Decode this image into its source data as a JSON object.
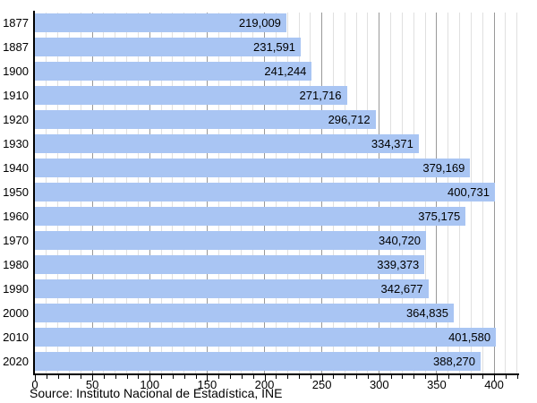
{
  "chart_data": {
    "type": "bar",
    "orientation": "horizontal",
    "title": "",
    "xlabel": "",
    "ylabel": "",
    "categories": [
      "1877",
      "1887",
      "1900",
      "1910",
      "1920",
      "1930",
      "1940",
      "1950",
      "1960",
      "1970",
      "1980",
      "1990",
      "2000",
      "2010",
      "2020"
    ],
    "values": [
      219009,
      231591,
      241244,
      271716,
      296712,
      334371,
      379169,
      400731,
      375175,
      340720,
      339373,
      342677,
      364835,
      401580,
      388270
    ],
    "value_labels": [
      "219,009",
      "231,591",
      "241,244",
      "271,716",
      "296,712",
      "334,371",
      "379,169",
      "400,731",
      "375,175",
      "340,720",
      "339,373",
      "342,677",
      "364,835",
      "401,580",
      "388,270"
    ],
    "axis_unit_divisor": 1000,
    "xlim": [
      0,
      421
    ],
    "x_tick_labels": [
      0,
      50,
      100,
      150,
      200,
      250,
      300,
      350,
      400
    ],
    "minor_grid_step": 10,
    "major_grid_step": 50,
    "grid": true,
    "legend": "none",
    "colors": {
      "bar": "#a9c5f3",
      "grid_minor": "#e0e0e0",
      "grid_major": "#999999",
      "axis": "#000000",
      "text": "#000000"
    },
    "source": "Source: Instituto Nacional de Estadística, INE"
  }
}
